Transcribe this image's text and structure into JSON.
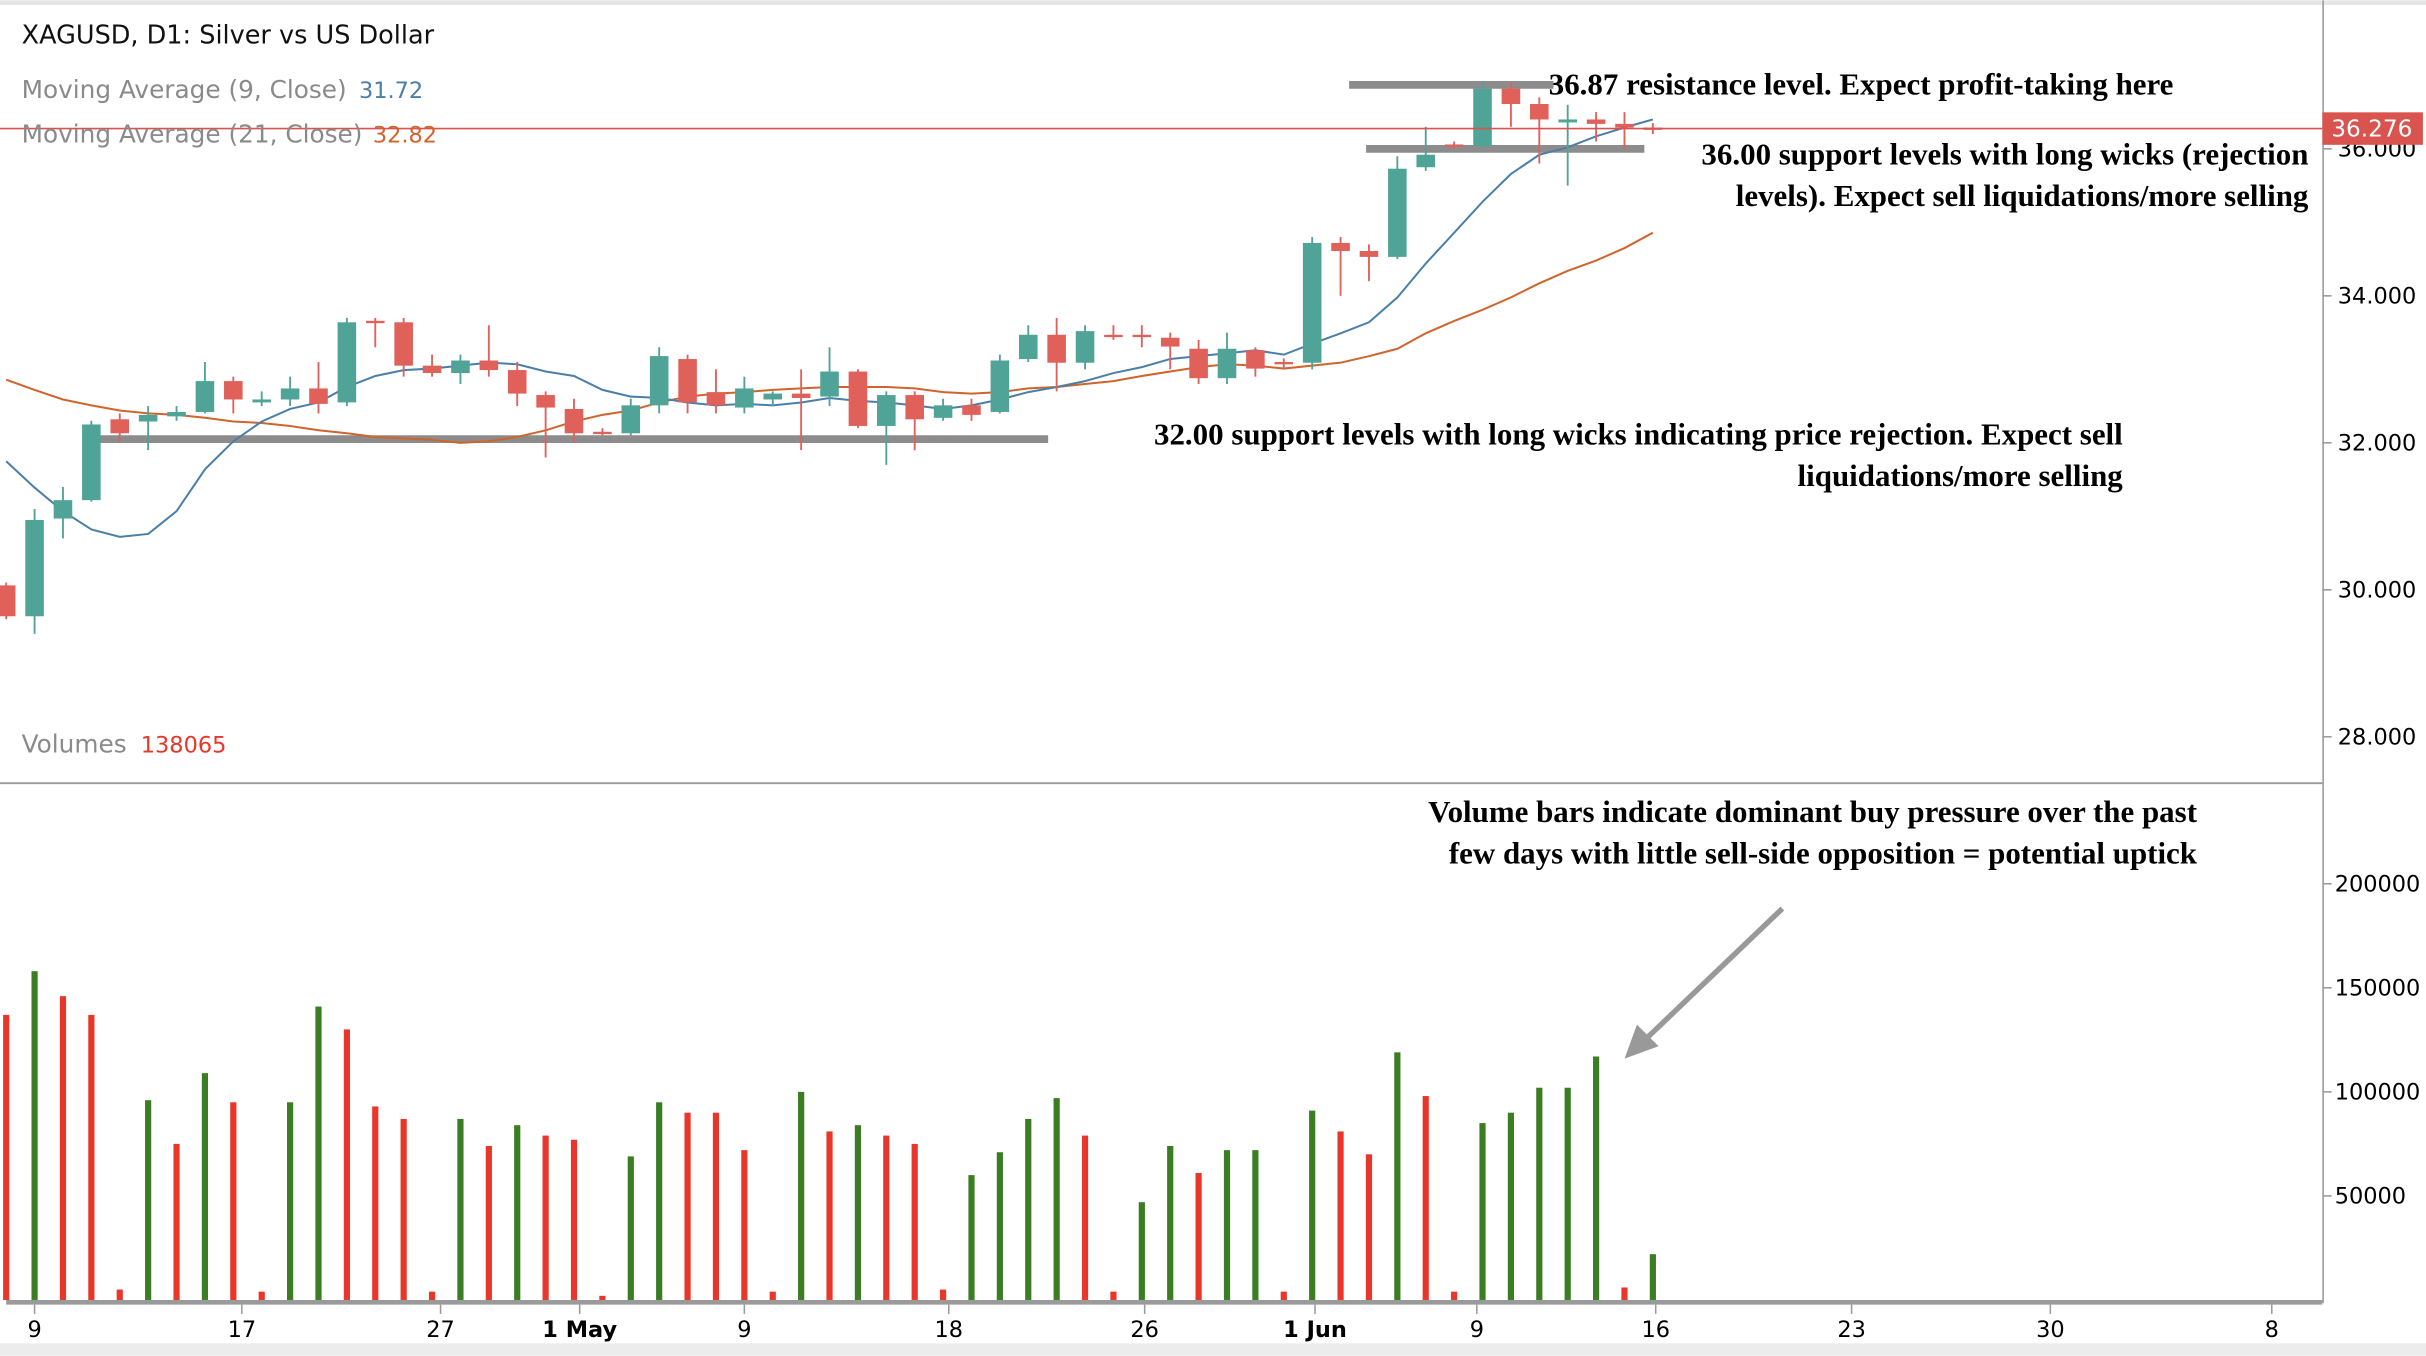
{
  "header": {
    "title": "XAGUSD, D1: Silver vs US Dollar",
    "ma9_label": "Moving Average (9, Close)",
    "ma9_value": "31.72",
    "ma21_label": "Moving Average (21, Close)",
    "ma21_value": "32.82",
    "volumes_label": "Volumes",
    "volumes_value": "138065",
    "last_price": "36.276"
  },
  "colors": {
    "up": "#4fa397",
    "down": "#e0605a",
    "vol_up": "#3a7d22",
    "vol_down": "#e8372a",
    "ma9": "#4a7fa7",
    "ma21": "#d0642c",
    "price_line": "#d9534f",
    "level_line": "#8c8c8c"
  },
  "annotations": {
    "resistance": "36.87 resistance level. Expect profit-taking here",
    "support36_line1": "36.00 support levels with long wicks (rejection",
    "support36_line2": "levels). Expect sell liquidations/more selling",
    "support32_line1": "32.00 support levels with long wicks indicating price rejection. Expect sell",
    "support32_line2": "liquidations/more selling",
    "volume_line1": "Volume bars indicate dominant buy pressure over the past",
    "volume_line2": "few days with little sell-side opposition = potential uptick"
  },
  "chart_data": {
    "type": "candlestick",
    "title": "XAGUSD, D1: Silver vs US Dollar",
    "price_axis": {
      "ticks": [
        "36.000",
        "34.000",
        "32.000",
        "30.000",
        "28.000"
      ],
      "tick_values": [
        36,
        34,
        32,
        30,
        28
      ],
      "range": [
        27.3,
        37.6
      ]
    },
    "volume_axis": {
      "ticks": [
        "200000",
        "150000",
        "100000",
        "50000"
      ],
      "tick_values": [
        200000,
        150000,
        100000,
        50000
      ],
      "range": [
        0,
        250000
      ]
    },
    "x_ticks": [
      {
        "label": "9",
        "index": 1
      },
      {
        "label": "17",
        "index": 8.3
      },
      {
        "label": "27",
        "index": 15.3
      },
      {
        "label": "1 May",
        "index": 20.2,
        "bold": true
      },
      {
        "label": "9",
        "index": 26
      },
      {
        "label": "18",
        "index": 33.2
      },
      {
        "label": "26",
        "index": 40.1
      },
      {
        "label": "1 Jun",
        "index": 46.1,
        "bold": true
      },
      {
        "label": "9",
        "index": 51.8
      },
      {
        "label": "16",
        "index": 58.1
      },
      {
        "label": "23",
        "index": 65
      },
      {
        "label": "30",
        "index": 72
      },
      {
        "label": "8",
        "index": 79.8
      }
    ],
    "levels": [
      {
        "name": "resistance",
        "price": 36.87,
        "from": 47.3,
        "to": 54.5
      },
      {
        "name": "support-36",
        "price": 36.0,
        "from": 47.9,
        "to": 57.7
      },
      {
        "name": "support-32",
        "price": 32.05,
        "from": 3.0,
        "to": 36.7
      }
    ],
    "candles_ohlc": [
      [
        30.06,
        30.1,
        29.6,
        29.64
      ],
      [
        29.64,
        31.1,
        29.4,
        30.95
      ],
      [
        30.97,
        31.4,
        30.7,
        31.22
      ],
      [
        31.22,
        32.3,
        31.2,
        32.25
      ],
      [
        32.32,
        32.4,
        32.0,
        32.13
      ],
      [
        32.29,
        32.5,
        31.9,
        32.38
      ],
      [
        32.36,
        32.5,
        32.3,
        32.42
      ],
      [
        32.42,
        33.1,
        32.4,
        32.84
      ],
      [
        32.84,
        32.9,
        32.4,
        32.59
      ],
      [
        32.55,
        32.7,
        32.5,
        32.59
      ],
      [
        32.59,
        32.9,
        32.5,
        32.74
      ],
      [
        32.74,
        33.1,
        32.4,
        32.53
      ],
      [
        32.55,
        33.7,
        32.5,
        33.64
      ],
      [
        33.66,
        33.7,
        33.3,
        33.64
      ],
      [
        33.64,
        33.7,
        32.9,
        33.05
      ],
      [
        33.05,
        33.2,
        32.9,
        32.95
      ],
      [
        32.95,
        33.2,
        32.8,
        33.12
      ],
      [
        33.12,
        33.6,
        32.9,
        32.99
      ],
      [
        32.99,
        33.1,
        32.5,
        32.67
      ],
      [
        32.65,
        32.7,
        31.8,
        32.48
      ],
      [
        32.46,
        32.6,
        32.0,
        32.13
      ],
      [
        32.15,
        32.2,
        32.1,
        32.13
      ],
      [
        32.13,
        32.6,
        32.1,
        32.51
      ],
      [
        32.51,
        33.3,
        32.4,
        33.18
      ],
      [
        33.14,
        33.2,
        32.4,
        32.55
      ],
      [
        32.69,
        33.0,
        32.4,
        32.51
      ],
      [
        32.48,
        32.9,
        32.4,
        32.74
      ],
      [
        32.59,
        32.7,
        32.5,
        32.67
      ],
      [
        32.67,
        33.0,
        31.9,
        32.61
      ],
      [
        32.63,
        33.3,
        32.5,
        32.97
      ],
      [
        32.97,
        33.0,
        32.2,
        32.23
      ],
      [
        32.23,
        32.7,
        31.7,
        32.65
      ],
      [
        32.65,
        32.7,
        31.9,
        32.32
      ],
      [
        32.34,
        32.6,
        32.3,
        32.51
      ],
      [
        32.51,
        32.6,
        32.3,
        32.38
      ],
      [
        32.42,
        33.2,
        32.4,
        33.12
      ],
      [
        33.14,
        33.6,
        33.1,
        33.47
      ],
      [
        33.47,
        33.7,
        32.7,
        33.09
      ],
      [
        33.09,
        33.6,
        33.0,
        33.52
      ],
      [
        33.47,
        33.6,
        33.4,
        33.45
      ],
      [
        33.47,
        33.6,
        33.3,
        33.45
      ],
      [
        33.43,
        33.5,
        33.0,
        33.31
      ],
      [
        33.28,
        33.4,
        32.8,
        32.88
      ],
      [
        32.88,
        33.5,
        32.8,
        33.28
      ],
      [
        33.26,
        33.3,
        32.9,
        33.01
      ],
      [
        33.1,
        33.15,
        33.0,
        33.07
      ],
      [
        33.09,
        34.8,
        33.0,
        34.72
      ],
      [
        34.72,
        34.8,
        34.0,
        34.61
      ],
      [
        34.61,
        34.7,
        34.2,
        34.53
      ],
      [
        34.53,
        35.9,
        34.5,
        35.73
      ],
      [
        35.75,
        36.3,
        35.7,
        35.92
      ],
      [
        36.06,
        36.1,
        36.0,
        36.04
      ],
      [
        36.04,
        36.9,
        36.0,
        36.82
      ],
      [
        36.82,
        36.9,
        36.3,
        36.61
      ],
      [
        36.61,
        36.7,
        35.8,
        36.4
      ],
      [
        36.36,
        36.6,
        35.5,
        36.4
      ],
      [
        36.4,
        36.5,
        36.1,
        36.34
      ],
      [
        36.34,
        36.5,
        36.0,
        36.29
      ],
      [
        36.29,
        36.35,
        36.2,
        36.276
      ]
    ],
    "ma9": [
      31.75,
      31.39,
      31.07,
      30.82,
      30.72,
      30.76,
      31.07,
      31.64,
      32.02,
      32.29,
      32.46,
      32.55,
      32.76,
      32.91,
      32.99,
      33.01,
      33.05,
      33.09,
      33.07,
      32.97,
      32.91,
      32.72,
      32.63,
      32.61,
      32.55,
      32.51,
      32.53,
      32.51,
      32.55,
      32.61,
      32.57,
      32.55,
      32.51,
      32.46,
      32.51,
      32.59,
      32.69,
      32.76,
      32.84,
      32.95,
      33.03,
      33.14,
      33.18,
      33.22,
      33.26,
      33.2,
      33.35,
      33.49,
      33.64,
      33.98,
      34.44,
      34.86,
      35.28,
      35.66,
      35.92,
      36.02,
      36.17,
      36.29,
      36.4
    ],
    "ma21": [
      32.86,
      32.72,
      32.59,
      32.51,
      32.44,
      32.4,
      32.38,
      32.34,
      32.29,
      32.27,
      32.23,
      32.17,
      32.13,
      32.08,
      32.06,
      32.04,
      32.0,
      32.02,
      32.08,
      32.17,
      32.29,
      32.38,
      32.44,
      32.55,
      32.63,
      32.67,
      32.69,
      32.72,
      32.74,
      32.76,
      32.76,
      32.76,
      32.74,
      32.69,
      32.67,
      32.69,
      32.74,
      32.76,
      32.8,
      32.84,
      32.91,
      32.97,
      33.03,
      33.07,
      33.05,
      33.01,
      33.05,
      33.09,
      33.18,
      33.28,
      33.49,
      33.66,
      33.81,
      33.98,
      34.17,
      34.34,
      34.48,
      34.65,
      34.86
    ],
    "volumes": [
      {
        "v": 137000,
        "d": "down"
      },
      {
        "v": 158000,
        "d": "up"
      },
      {
        "v": 146000,
        "d": "down"
      },
      {
        "v": 137000,
        "d": "down"
      },
      {
        "v": 5000,
        "d": "down"
      },
      {
        "v": 96000,
        "d": "up"
      },
      {
        "v": 75000,
        "d": "down"
      },
      {
        "v": 109000,
        "d": "up"
      },
      {
        "v": 95000,
        "d": "down"
      },
      {
        "v": 4000,
        "d": "down"
      },
      {
        "v": 95000,
        "d": "up"
      },
      {
        "v": 141000,
        "d": "up"
      },
      {
        "v": 130000,
        "d": "down"
      },
      {
        "v": 93000,
        "d": "down"
      },
      {
        "v": 87000,
        "d": "down"
      },
      {
        "v": 4000,
        "d": "down"
      },
      {
        "v": 87000,
        "d": "up"
      },
      {
        "v": 74000,
        "d": "down"
      },
      {
        "v": 84000,
        "d": "up"
      },
      {
        "v": 79000,
        "d": "down"
      },
      {
        "v": 77000,
        "d": "down"
      },
      {
        "v": 2000,
        "d": "down"
      },
      {
        "v": 69000,
        "d": "up"
      },
      {
        "v": 95000,
        "d": "up"
      },
      {
        "v": 90000,
        "d": "down"
      },
      {
        "v": 90000,
        "d": "down"
      },
      {
        "v": 72000,
        "d": "down"
      },
      {
        "v": 4000,
        "d": "down"
      },
      {
        "v": 100000,
        "d": "up"
      },
      {
        "v": 81000,
        "d": "down"
      },
      {
        "v": 84000,
        "d": "up"
      },
      {
        "v": 79000,
        "d": "down"
      },
      {
        "v": 75000,
        "d": "down"
      },
      {
        "v": 5000,
        "d": "down"
      },
      {
        "v": 60000,
        "d": "up"
      },
      {
        "v": 71000,
        "d": "up"
      },
      {
        "v": 87000,
        "d": "up"
      },
      {
        "v": 97000,
        "d": "up"
      },
      {
        "v": 79000,
        "d": "down"
      },
      {
        "v": 4000,
        "d": "down"
      },
      {
        "v": 47000,
        "d": "up"
      },
      {
        "v": 74000,
        "d": "up"
      },
      {
        "v": 61000,
        "d": "down"
      },
      {
        "v": 72000,
        "d": "up"
      },
      {
        "v": 72000,
        "d": "up"
      },
      {
        "v": 4000,
        "d": "down"
      },
      {
        "v": 91000,
        "d": "up"
      },
      {
        "v": 81000,
        "d": "down"
      },
      {
        "v": 70000,
        "d": "down"
      },
      {
        "v": 119000,
        "d": "up"
      },
      {
        "v": 98000,
        "d": "down"
      },
      {
        "v": 4000,
        "d": "down"
      },
      {
        "v": 85000,
        "d": "up"
      },
      {
        "v": 90000,
        "d": "up"
      },
      {
        "v": 102000,
        "d": "up"
      },
      {
        "v": 102000,
        "d": "up"
      },
      {
        "v": 117000,
        "d": "up"
      },
      {
        "v": 6000,
        "d": "down"
      },
      {
        "v": 22000,
        "d": "up"
      }
    ]
  }
}
